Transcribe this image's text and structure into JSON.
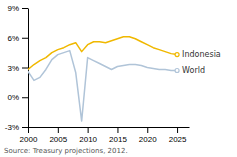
{
  "chart_data": {
    "type": "line",
    "x": [
      2000,
      2001,
      2002,
      2003,
      2004,
      2005,
      2006,
      2007,
      2008,
      2009,
      2010,
      2011,
      2012,
      2013,
      2014,
      2015,
      2016,
      2017,
      2018,
      2019,
      2020,
      2021,
      2022,
      2023,
      2024,
      2025
    ],
    "series": [
      {
        "name": "Indonesia",
        "color": "#f0b800",
        "values": [
          2.8,
          3.3,
          3.7,
          4.0,
          4.5,
          4.8,
          5.0,
          5.3,
          5.5,
          4.6,
          5.3,
          5.6,
          5.6,
          5.5,
          5.7,
          5.9,
          6.1,
          6.1,
          5.9,
          5.6,
          5.3,
          5.0,
          4.8,
          4.6,
          4.4,
          4.3
        ]
      },
      {
        "name": "World",
        "color": "#b0c4d8",
        "values": [
          2.6,
          1.7,
          2.0,
          2.8,
          3.8,
          4.3,
          4.5,
          4.7,
          2.5,
          -2.4,
          4.0,
          3.7,
          3.4,
          3.1,
          2.8,
          3.1,
          3.2,
          3.3,
          3.3,
          3.2,
          3.0,
          2.9,
          2.8,
          2.8,
          2.7,
          2.7
        ]
      }
    ],
    "xlim": [
      2000,
      2027
    ],
    "xticks": [
      2000,
      2005,
      2010,
      2015,
      2020,
      2025
    ],
    "ylim": [
      -3,
      9
    ],
    "yticks": [
      {
        "value": -3,
        "label": "-3%"
      },
      {
        "value": 0,
        "label": "0%"
      },
      {
        "value": 3,
        "label": "3%"
      },
      {
        "value": 6,
        "label": "6%"
      },
      {
        "value": 9,
        "label": "9%"
      }
    ],
    "legend": "right",
    "annotations": [
      "Source: Treasury projections, 2012."
    ]
  }
}
